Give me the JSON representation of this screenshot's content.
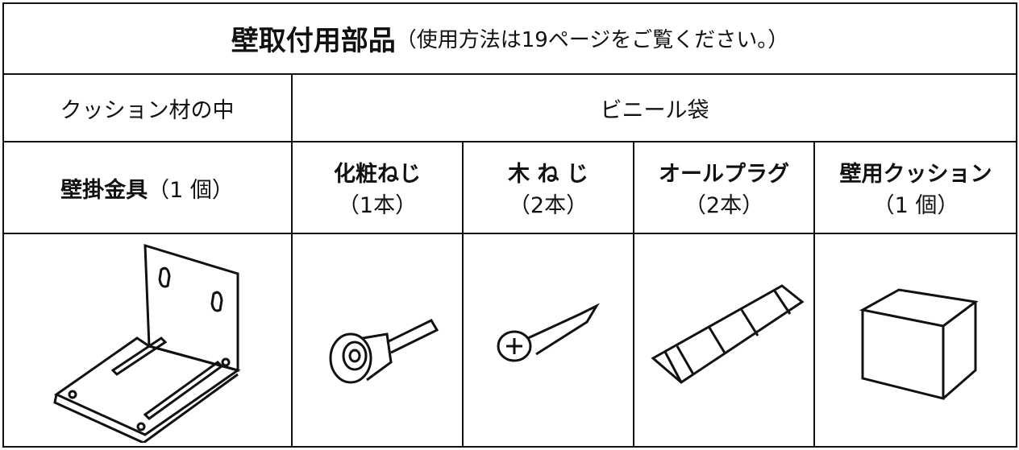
{
  "header": {
    "title": "壁取付用部品",
    "note": "（使用方法は19ページをご覧ください。）"
  },
  "table": {
    "groups": [
      "クッション材の中",
      "ビニール袋"
    ],
    "items": [
      {
        "name": "壁掛金具",
        "qty": "（1 個）"
      },
      {
        "name": "化粧ねじ",
        "qty": "（1本）"
      },
      {
        "name": "木 ね じ",
        "qty": "（2本）"
      },
      {
        "name": "オールプラグ",
        "qty": "（2本）"
      },
      {
        "name": "壁用クッション",
        "qty": "（1 個）"
      }
    ]
  }
}
